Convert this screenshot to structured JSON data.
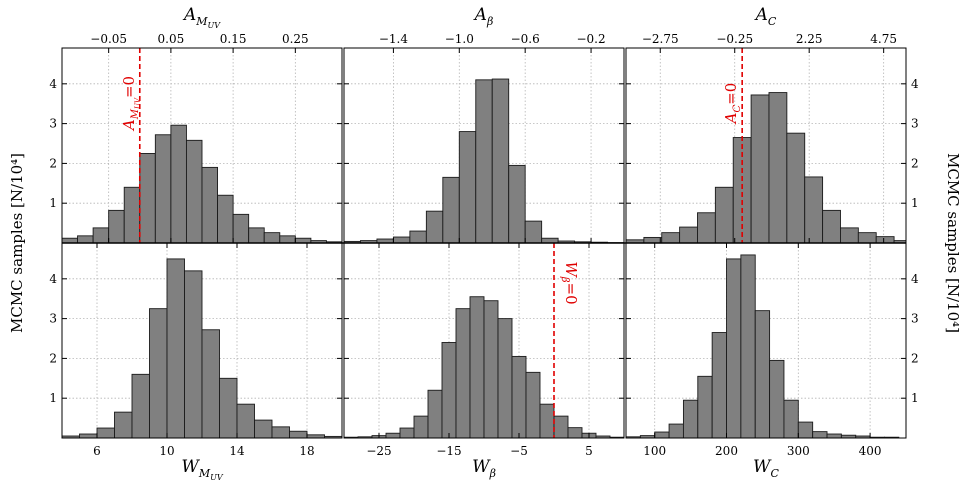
{
  "ylabel_left": "MCMC samples [N/10⁴]",
  "ylabel_right": "MCMC samples [N/10⁴]",
  "chart_data": [
    {
      "type": "bar",
      "panel": "top-left",
      "top_axis_label": "A",
      "top_axis_sub": "M_UV",
      "top_ticks": [
        -0.05,
        0.05,
        0.15,
        0.25
      ],
      "top_tick_labels": [
        "−0.05",
        "0.05",
        "0.15",
        "0.25"
      ],
      "xlim": [
        -0.125,
        0.325
      ],
      "ylim": [
        0,
        4.9
      ],
      "yticks": [
        1,
        2,
        3,
        4
      ],
      "bin_edges": [
        -0.125,
        -0.1,
        -0.075,
        -0.05,
        -0.025,
        0.0,
        0.025,
        0.05,
        0.075,
        0.1,
        0.125,
        0.15,
        0.175,
        0.2,
        0.225,
        0.25,
        0.275,
        0.3,
        0.325
      ],
      "values": [
        0.12,
        0.18,
        0.38,
        0.82,
        1.4,
        2.25,
        2.72,
        2.96,
        2.58,
        1.9,
        1.2,
        0.72,
        0.38,
        0.26,
        0.18,
        0.12,
        0.06,
        0.03
      ],
      "ref_line": 0.0,
      "ref_label": "A",
      "ref_sub": "M_UV",
      "ref_eq": "=0"
    },
    {
      "type": "bar",
      "panel": "top-middle",
      "top_axis_label": "A",
      "top_axis_sub": "β",
      "top_ticks": [
        -1.4,
        -1.0,
        -0.6,
        -0.2
      ],
      "top_tick_labels": [
        "−1.4",
        "−1.0",
        "−0.6",
        "−0.2"
      ],
      "xlim": [
        -1.7,
        0.0
      ],
      "ylim": [
        0,
        4.9
      ],
      "yticks": [
        1,
        2,
        3,
        4
      ],
      "bin_edges": [
        -1.7,
        -1.6,
        -1.5,
        -1.4,
        -1.3,
        -1.2,
        -1.1,
        -1.0,
        -0.9,
        -0.8,
        -0.7,
        -0.6,
        -0.5,
        -0.4,
        -0.3,
        -0.2,
        -0.1,
        0.0
      ],
      "values": [
        0.04,
        0.06,
        0.1,
        0.15,
        0.3,
        0.8,
        1.65,
        2.8,
        4.1,
        4.12,
        1.95,
        0.55,
        0.12,
        0.05,
        0.03,
        0.02,
        0.01
      ]
    },
    {
      "type": "bar",
      "panel": "top-right",
      "top_axis_label": "A",
      "top_axis_sub": "C",
      "top_ticks": [
        -2.75,
        -0.25,
        2.25,
        4.75
      ],
      "top_tick_labels": [
        "−2.75",
        "−0.25",
        "2.25",
        "4.75"
      ],
      "xlim": [
        -3.9,
        5.5
      ],
      "ylim": [
        0,
        4.9
      ],
      "yticks": [
        1,
        2,
        3,
        4
      ],
      "bin_edges": [
        -3.9,
        -3.3,
        -2.7,
        -2.1,
        -1.5,
        -0.9,
        -0.3,
        0.3,
        0.9,
        1.5,
        2.1,
        2.7,
        3.3,
        3.9,
        4.5,
        5.1,
        5.7
      ],
      "values": [
        0.08,
        0.14,
        0.26,
        0.4,
        0.76,
        1.4,
        2.65,
        3.72,
        3.78,
        2.76,
        1.66,
        0.82,
        0.38,
        0.26,
        0.16,
        0.06
      ],
      "ref_line": 0.0,
      "ref_label": "A",
      "ref_sub": "C",
      "ref_eq": "=0"
    },
    {
      "type": "bar",
      "panel": "bottom-left",
      "xlabel": "W",
      "xlabel_sub": "M_UV",
      "xticks": [
        6,
        10,
        14,
        18
      ],
      "xtick_labels": [
        "6",
        "10",
        "14",
        "18"
      ],
      "xlim": [
        4.0,
        20.0
      ],
      "ylim": [
        0,
        4.9
      ],
      "yticks": [
        1,
        2,
        3,
        4
      ],
      "bin_edges": [
        4.0,
        5.0,
        6.0,
        7.0,
        8.0,
        9.0,
        10.0,
        11.0,
        12.0,
        13.0,
        14.0,
        15.0,
        16.0,
        17.0,
        18.0,
        19.0,
        20.0
      ],
      "values": [
        0.05,
        0.1,
        0.25,
        0.65,
        1.6,
        3.25,
        4.5,
        4.2,
        2.72,
        1.5,
        0.85,
        0.45,
        0.28,
        0.17,
        0.08,
        0.04
      ]
    },
    {
      "type": "bar",
      "panel": "bottom-middle",
      "xlabel": "W",
      "xlabel_sub": "β",
      "xticks": [
        -25,
        -15,
        -5,
        5
      ],
      "xtick_labels": [
        "−25",
        "−15",
        "−5",
        "5"
      ],
      "xlim": [
        -30.0,
        10.0
      ],
      "ylim": [
        0,
        4.9
      ],
      "yticks": [
        1,
        2,
        3,
        4
      ],
      "bin_edges": [
        -30.0,
        -28.0,
        -26.0,
        -24.0,
        -22.0,
        -20.0,
        -18.0,
        -16.0,
        -14.0,
        -12.0,
        -10.0,
        -8.0,
        -6.0,
        -4.0,
        -2.0,
        0.0,
        2.0,
        4.0,
        6.0,
        8.0,
        10.0
      ],
      "values": [
        0.02,
        0.03,
        0.06,
        0.12,
        0.25,
        0.55,
        1.2,
        2.4,
        3.25,
        3.55,
        3.45,
        3.0,
        2.05,
        1.65,
        0.85,
        0.55,
        0.26,
        0.12,
        0.05,
        0.02
      ],
      "ref_line": 0.0,
      "ref_label": "W",
      "ref_sub": "β",
      "ref_eq": "=0"
    },
    {
      "type": "bar",
      "panel": "bottom-right",
      "xlabel": "W",
      "xlabel_sub": "C",
      "xticks": [
        100,
        200,
        300,
        400
      ],
      "xtick_labels": [
        "100",
        "200",
        "300",
        "400"
      ],
      "xlim": [
        60.0,
        450.0
      ],
      "ylim": [
        0,
        4.9
      ],
      "yticks": [
        1,
        2,
        3,
        4
      ],
      "bin_edges": [
        60.0,
        80.0,
        100.0,
        120.0,
        140.0,
        160.0,
        180.0,
        200.0,
        220.0,
        240.0,
        260.0,
        280.0,
        300.0,
        320.0,
        340.0,
        360.0,
        380.0,
        400.0,
        420.0,
        440.0
      ],
      "values": [
        0.03,
        0.06,
        0.15,
        0.35,
        0.95,
        1.55,
        2.65,
        4.5,
        4.6,
        3.2,
        1.95,
        0.95,
        0.4,
        0.16,
        0.1,
        0.07,
        0.05,
        0.02,
        0.02
      ]
    }
  ]
}
